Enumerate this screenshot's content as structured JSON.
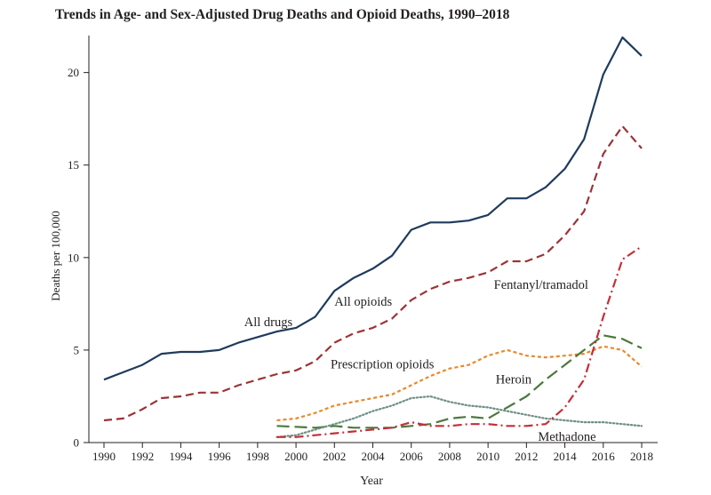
{
  "chart_data": {
    "type": "line",
    "title": "Trends in Age- and Sex-Adjusted Drug Deaths and Opioid Deaths, 1990–2018",
    "xlabel": "Year",
    "ylabel": "Deaths per 100,000",
    "xlim": [
      1990,
      2018
    ],
    "ylim": [
      0,
      22
    ],
    "x_ticks": [
      "1990",
      "1992",
      "1994",
      "1996",
      "1998",
      "2000",
      "2002",
      "2004",
      "2006",
      "2008",
      "2010",
      "2012",
      "2014",
      "2016",
      "2018"
    ],
    "y_ticks": [
      "0",
      "5",
      "10",
      "15",
      "20"
    ],
    "grid": false,
    "legend": "none (series labeled directly on plot)",
    "series": [
      {
        "name": "All drugs",
        "color": "#1f3b5c",
        "dash": "solid",
        "x": [
          1990,
          1991,
          1992,
          1993,
          1994,
          1995,
          1996,
          1997,
          1998,
          1999,
          2000,
          2001,
          2002,
          2003,
          2004,
          2005,
          2006,
          2007,
          2008,
          2009,
          2010,
          2011,
          2012,
          2013,
          2014,
          2015,
          2016,
          2017,
          2018
        ],
        "values": [
          3.4,
          3.8,
          4.2,
          4.8,
          4.9,
          4.9,
          5.0,
          5.4,
          5.7,
          6.0,
          6.2,
          6.8,
          8.2,
          8.9,
          9.4,
          10.1,
          11.5,
          11.9,
          11.9,
          12.0,
          12.3,
          13.2,
          13.2,
          13.8,
          14.8,
          16.4,
          19.9,
          21.9,
          20.9
        ]
      },
      {
        "name": "All opioids",
        "color": "#9b3337",
        "dash": "dashed",
        "x": [
          1990,
          1991,
          1992,
          1993,
          1994,
          1995,
          1996,
          1997,
          1998,
          1999,
          2000,
          2001,
          2002,
          2003,
          2004,
          2005,
          2006,
          2007,
          2008,
          2009,
          2010,
          2011,
          2012,
          2013,
          2014,
          2015,
          2016,
          2017,
          2018
        ],
        "values": [
          1.2,
          1.3,
          1.8,
          2.4,
          2.5,
          2.7,
          2.7,
          3.1,
          3.4,
          3.7,
          3.9,
          4.4,
          5.4,
          5.9,
          6.2,
          6.7,
          7.7,
          8.3,
          8.7,
          8.9,
          9.2,
          9.8,
          9.8,
          10.2,
          11.2,
          12.5,
          15.6,
          17.1,
          15.9
        ]
      },
      {
        "name": "Prescription opioids",
        "color": "#e8892b",
        "dash": "dotted-short-dash",
        "x": [
          1999,
          2000,
          2001,
          2002,
          2003,
          2004,
          2005,
          2006,
          2007,
          2008,
          2009,
          2010,
          2011,
          2012,
          2013,
          2014,
          2015,
          2016,
          2017,
          2018
        ],
        "values": [
          1.2,
          1.3,
          1.6,
          2.0,
          2.2,
          2.4,
          2.6,
          3.1,
          3.6,
          4.0,
          4.2,
          4.7,
          5.0,
          4.7,
          4.6,
          4.7,
          4.8,
          5.2,
          5.0,
          4.1
        ]
      },
      {
        "name": "Heroin",
        "color": "#4a7a3a",
        "dash": "long-dash",
        "x": [
          1999,
          2000,
          2001,
          2002,
          2003,
          2004,
          2005,
          2006,
          2007,
          2008,
          2009,
          2010,
          2011,
          2012,
          2013,
          2014,
          2015,
          2016,
          2017,
          2018
        ],
        "values": [
          0.9,
          0.85,
          0.8,
          0.9,
          0.8,
          0.8,
          0.8,
          0.9,
          1.0,
          1.3,
          1.4,
          1.3,
          1.9,
          2.5,
          3.4,
          4.2,
          5.0,
          5.8,
          5.6,
          5.1
        ]
      },
      {
        "name": "Methadone",
        "color": "#6e8f86",
        "dash": "dotted",
        "x": [
          1999,
          2000,
          2001,
          2002,
          2003,
          2004,
          2005,
          2006,
          2007,
          2008,
          2009,
          2010,
          2011,
          2012,
          2013,
          2014,
          2015,
          2016,
          2017,
          2018
        ],
        "values": [
          0.3,
          0.4,
          0.7,
          1.0,
          1.3,
          1.7,
          2.0,
          2.4,
          2.5,
          2.2,
          2.0,
          1.9,
          1.7,
          1.5,
          1.3,
          1.2,
          1.1,
          1.1,
          1.0,
          0.9
        ]
      },
      {
        "name": "Fentanyl/tramadol",
        "color": "#c42e3a",
        "dash": "dash-dot",
        "x": [
          1999,
          2000,
          2001,
          2002,
          2003,
          2004,
          2005,
          2006,
          2007,
          2008,
          2009,
          2010,
          2011,
          2012,
          2013,
          2014,
          2015,
          2016,
          2017,
          2018
        ],
        "values": [
          0.3,
          0.3,
          0.4,
          0.5,
          0.6,
          0.7,
          0.8,
          1.1,
          0.9,
          0.9,
          1.0,
          1.0,
          0.9,
          0.9,
          1.0,
          1.9,
          3.4,
          6.8,
          9.9,
          10.6
        ]
      }
    ],
    "annotations": [
      {
        "text": "All drugs",
        "x": 1997.3,
        "y": 6.3
      },
      {
        "text": "All opioids",
        "x": 2002.0,
        "y": 7.4
      },
      {
        "text": "Fentanyl/tramadol",
        "x": 2010.3,
        "y": 8.3
      },
      {
        "text": "Prescription opioids",
        "x": 2001.8,
        "y": 4.0
      },
      {
        "text": "Heroin",
        "x": 2010.4,
        "y": 3.2
      },
      {
        "text": "Methadone",
        "x": 2012.6,
        "y": 0.1
      }
    ]
  }
}
